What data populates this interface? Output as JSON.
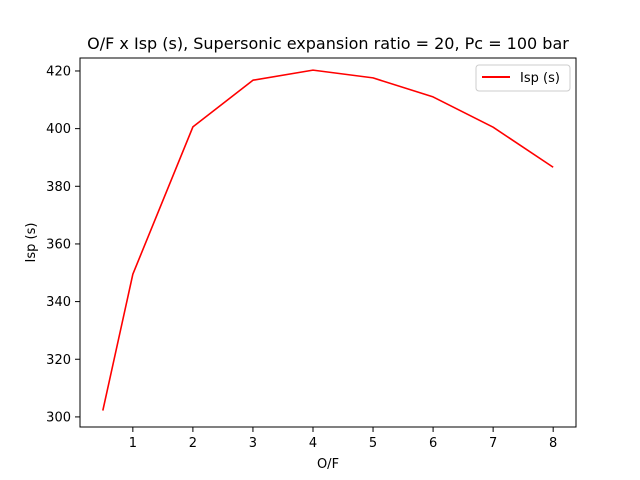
{
  "chart_data": {
    "type": "line",
    "title": "O/F x Isp (s), Supersonic expansion ratio = 20, Pc = 100 bar",
    "xlabel": "O/F",
    "ylabel": "Isp (s)",
    "xlim": [
      0.12,
      8.38
    ],
    "ylim": [
      296.5,
      424.5
    ],
    "xticks": [
      1,
      2,
      3,
      4,
      5,
      6,
      7,
      8
    ],
    "yticks": [
      300,
      320,
      340,
      360,
      380,
      400,
      420
    ],
    "grid": false,
    "legend": "top-right",
    "series": [
      {
        "name": "Isp (s)",
        "color": "#ff0000",
        "x": [
          0.5,
          1,
          2,
          3,
          4,
          5,
          6,
          7,
          8
        ],
        "y": [
          302.2,
          349.5,
          400.6,
          416.8,
          420.3,
          417.6,
          411.0,
          400.5,
          386.6
        ]
      }
    ]
  }
}
